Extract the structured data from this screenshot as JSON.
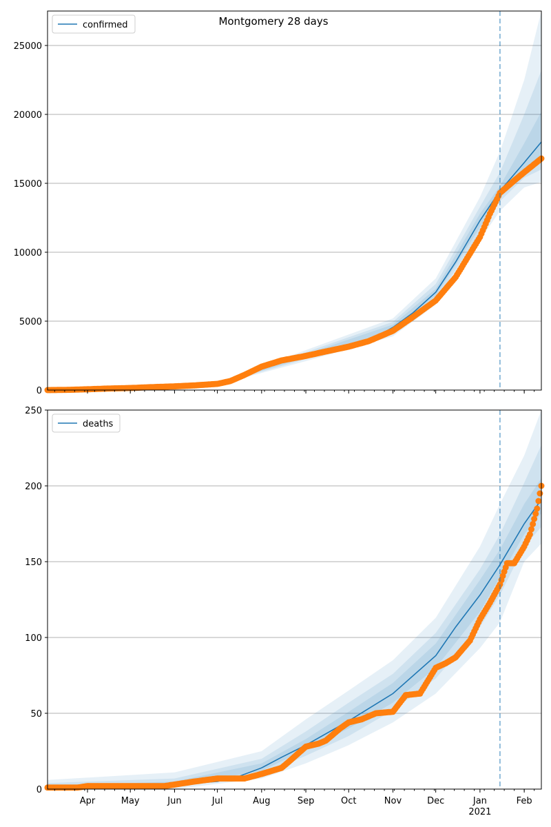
{
  "figure": {
    "title": "Montgomery 28 days"
  },
  "colors": {
    "model_line": "#1f77b4",
    "band": "#1f77b4",
    "observed": "#ff7f0e",
    "divider": "#1f77b4",
    "grid": "#b0b0b0"
  },
  "chart_data": [
    {
      "type": "line",
      "legend": "confirmed",
      "legend_position": "top-left",
      "x_range": [
        "2020-03-04",
        "2021-02-13"
      ],
      "ylim": [
        0,
        27500
      ],
      "y_ticks": [
        0,
        5000,
        10000,
        15000,
        20000,
        25000
      ],
      "grid": "horizontal",
      "forecast_start": "2021-01-15",
      "model": {
        "x": [
          "2020-03-04",
          "2020-04-01",
          "2020-05-01",
          "2020-06-01",
          "2020-07-01",
          "2020-07-15",
          "2020-08-01",
          "2020-09-01",
          "2020-10-01",
          "2020-10-15",
          "2020-11-01",
          "2020-11-15",
          "2020-12-01",
          "2020-12-15",
          "2021-01-01",
          "2021-01-15",
          "2021-02-01",
          "2021-02-13"
        ],
        "y": [
          0,
          60,
          150,
          260,
          450,
          900,
          1750,
          2500,
          3150,
          3550,
          4550,
          5600,
          7100,
          9300,
          12300,
          14450,
          16500,
          18000
        ]
      },
      "bands": [
        {
          "x": [
            "2020-03-04",
            "2020-07-01",
            "2020-09-01",
            "2020-11-01",
            "2020-12-01",
            "2021-01-01",
            "2021-01-15",
            "2021-02-01",
            "2021-02-13"
          ],
          "lower": [
            0,
            380,
            2100,
            3900,
            6200,
            10900,
            13000,
            14700,
            15100
          ],
          "upper": [
            60,
            560,
            2900,
            5200,
            8100,
            14000,
            17300,
            22500,
            27500
          ]
        },
        {
          "x": [
            "2020-03-04",
            "2020-07-01",
            "2020-09-01",
            "2020-11-01",
            "2020-12-01",
            "2021-01-01",
            "2021-01-15",
            "2021-02-01",
            "2021-02-13"
          ],
          "lower": [
            0,
            410,
            2250,
            4150,
            6550,
            11400,
            13700,
            15400,
            16000
          ],
          "upper": [
            40,
            520,
            2750,
            4950,
            7700,
            13300,
            15800,
            20000,
            23200
          ]
        },
        {
          "x": [
            "2020-03-04",
            "2020-07-01",
            "2020-09-01",
            "2020-11-01",
            "2020-12-01",
            "2021-01-01",
            "2021-01-15",
            "2021-02-01",
            "2021-02-13"
          ],
          "lower": [
            0,
            430,
            2380,
            4350,
            6850,
            11800,
            14100,
            15900,
            16900
          ],
          "upper": [
            20,
            480,
            2620,
            4750,
            7350,
            12800,
            14800,
            17900,
            20200
          ]
        }
      ],
      "observed": {
        "x": [
          "2020-03-04",
          "2020-03-20",
          "2020-04-01",
          "2020-04-15",
          "2020-05-01",
          "2020-05-15",
          "2020-06-01",
          "2020-06-15",
          "2020-07-01",
          "2020-07-10",
          "2020-07-20",
          "2020-08-01",
          "2020-08-15",
          "2020-09-01",
          "2020-09-15",
          "2020-10-01",
          "2020-10-15",
          "2020-11-01",
          "2020-11-15",
          "2020-12-01",
          "2020-12-15",
          "2021-01-01",
          "2021-01-08",
          "2021-01-15",
          "2021-01-25",
          "2021-02-01",
          "2021-02-13"
        ],
        "y": [
          0,
          20,
          60,
          110,
          150,
          210,
          270,
          340,
          450,
          650,
          1100,
          1700,
          2150,
          2480,
          2800,
          3150,
          3550,
          4300,
          5300,
          6500,
          8200,
          11100,
          12800,
          14300,
          15200,
          15800,
          16800
        ]
      }
    },
    {
      "type": "line",
      "legend": "deaths",
      "legend_position": "top-left",
      "x_range": [
        "2020-03-04",
        "2021-02-13"
      ],
      "ylim": [
        0,
        250
      ],
      "y_ticks": [
        0,
        50,
        100,
        150,
        200,
        250
      ],
      "grid": "horizontal",
      "forecast_start": "2021-01-15",
      "model": {
        "x": [
          "2020-03-04",
          "2020-04-01",
          "2020-05-01",
          "2020-06-01",
          "2020-07-01",
          "2020-07-15",
          "2020-08-01",
          "2020-08-15",
          "2020-09-01",
          "2020-10-01",
          "2020-11-01",
          "2020-12-01",
          "2020-12-15",
          "2021-01-01",
          "2021-01-15",
          "2021-02-01",
          "2021-02-13"
        ],
        "y": [
          0,
          1,
          2,
          3,
          5,
          8,
          14,
          21,
          29,
          45,
          63,
          88,
          107,
          128,
          148,
          175,
          191
        ]
      },
      "bands": [
        {
          "x": [
            "2020-03-04",
            "2020-06-01",
            "2020-08-01",
            "2020-09-01",
            "2020-10-01",
            "2020-11-01",
            "2020-12-01",
            "2021-01-01",
            "2021-01-15",
            "2021-02-01",
            "2021-02-13"
          ],
          "lower": [
            0,
            0,
            7,
            17,
            29,
            44,
            63,
            93,
            110,
            150,
            162
          ],
          "upper": [
            6,
            11,
            25,
            46,
            65,
            85,
            113,
            160,
            188,
            220,
            250
          ]
        },
        {
          "x": [
            "2020-03-04",
            "2020-06-01",
            "2020-08-01",
            "2020-09-01",
            "2020-10-01",
            "2020-11-01",
            "2020-12-01",
            "2021-01-01",
            "2021-01-15",
            "2021-02-01",
            "2021-02-13"
          ],
          "lower": [
            0,
            1,
            10,
            22,
            35,
            52,
            73,
            107,
            128,
            160,
            173
          ],
          "upper": [
            4,
            7,
            20,
            38,
            57,
            76,
            103,
            145,
            168,
            202,
            227
          ]
        },
        {
          "x": [
            "2020-03-04",
            "2020-06-01",
            "2020-08-01",
            "2020-09-01",
            "2020-10-01",
            "2020-11-01",
            "2020-12-01",
            "2021-01-01",
            "2021-01-15",
            "2021-02-01",
            "2021-02-13"
          ],
          "lower": [
            0,
            2,
            12,
            26,
            40,
            57,
            80,
            117,
            140,
            168,
            182
          ],
          "upper": [
            2,
            5,
            17,
            33,
            51,
            70,
            96,
            138,
            158,
            188,
            205
          ]
        }
      ],
      "observed": {
        "x": [
          "2020-03-04",
          "2020-03-25",
          "2020-04-01",
          "2020-05-01",
          "2020-05-25",
          "2020-06-01",
          "2020-06-15",
          "2020-07-01",
          "2020-07-20",
          "2020-08-01",
          "2020-08-15",
          "2020-08-20",
          "2020-09-01",
          "2020-09-10",
          "2020-09-15",
          "2020-09-25",
          "2020-10-01",
          "2020-10-10",
          "2020-10-20",
          "2020-11-01",
          "2020-11-10",
          "2020-11-20",
          "2020-12-01",
          "2020-12-08",
          "2020-12-15",
          "2020-12-25",
          "2021-01-01",
          "2021-01-08",
          "2021-01-15",
          "2021-01-20",
          "2021-01-25",
          "2021-02-01",
          "2021-02-05",
          "2021-02-10",
          "2021-02-13"
        ],
        "y": [
          1,
          1,
          2,
          2,
          2,
          3,
          5,
          7,
          7,
          10,
          14,
          18,
          28,
          30,
          32,
          40,
          44,
          46,
          50,
          51,
          62,
          63,
          80,
          83,
          87,
          98,
          112,
          123,
          135,
          149,
          149,
          160,
          168,
          185,
          200
        ]
      }
    }
  ]
}
